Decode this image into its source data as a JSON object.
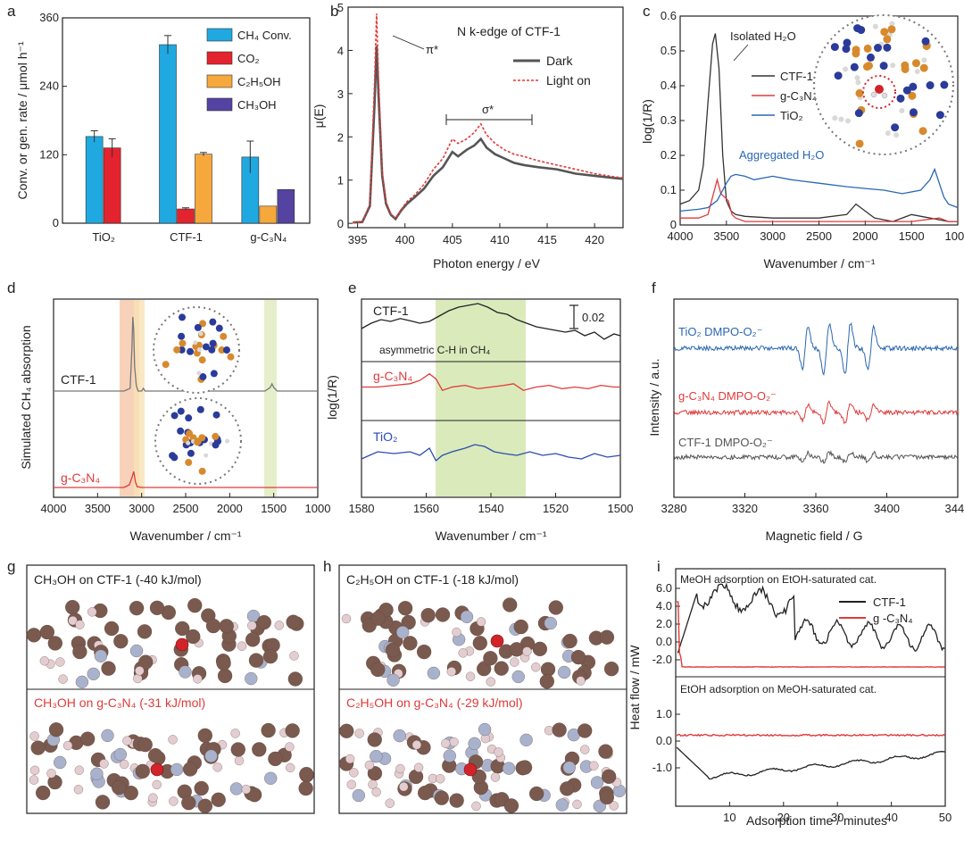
{
  "panels": {
    "a": {
      "letter": "a",
      "chart_data": {
        "type": "bar",
        "ylabel": "Conv. or gen. rate / μmol h⁻¹",
        "ylim": [
          0,
          360
        ],
        "yticks": [
          "0",
          "120",
          "240",
          "360"
        ],
        "categories": [
          "TiO₂",
          "CTF-1",
          "g-C₃N₄"
        ],
        "series": [
          {
            "name": "CH₄ Conv.",
            "color": "#1fa9e0",
            "values": [
              152,
              313,
              116
            ],
            "errors": [
              10,
              16,
              28
            ]
          },
          {
            "name": "CO₂",
            "color": "#e3232d",
            "values": [
              132,
              25,
              0
            ],
            "errors": [
              16,
              2,
              0
            ]
          },
          {
            "name": "C₂H₅OH",
            "color": "#f6a83c",
            "values": [
              0,
              121,
              30
            ],
            "errors": [
              0,
              3,
              0
            ]
          },
          {
            "name": "CH₃OH",
            "color": "#5443a0",
            "values": [
              0,
              0,
              59
            ],
            "errors": [
              0,
              0,
              0
            ]
          }
        ]
      }
    },
    "b": {
      "letter": "b",
      "title": "N k-edge of CTF-1",
      "annotations": {
        "pi": "π*",
        "sigma": "σ*"
      },
      "chart_data": {
        "type": "line",
        "xlabel": "Photon energy / eV",
        "ylabel": "μ(E)",
        "xlim": [
          394,
          423
        ],
        "ylim": [
          -0.1,
          5
        ],
        "xticks": [
          "395",
          "400",
          "405",
          "410",
          "415",
          "420"
        ],
        "yticks": [
          "0",
          "1",
          "2",
          "3",
          "4",
          "5"
        ],
        "series": [
          {
            "name": "Dark",
            "color": "#555555",
            "x": [
              394.5,
              395.5,
              396.3,
              396.8,
              397.0,
              397.2,
              397.6,
              398.0,
              398.5,
              399.0,
              399.6,
              400.2,
              401,
              402,
              403,
              404,
              405,
              405.6,
              406.5,
              407.3,
              408,
              408.6,
              409.5,
              410.5,
              411.5,
              412.5,
              414,
              416,
              418,
              420,
              422,
              423
            ],
            "y": [
              0.02,
              0.03,
              0.4,
              2.8,
              4.1,
              3.0,
              1.1,
              0.45,
              0.2,
              0.1,
              0.3,
              0.45,
              0.6,
              0.8,
              1.1,
              1.3,
              1.65,
              1.55,
              1.7,
              1.8,
              1.95,
              1.75,
              1.6,
              1.5,
              1.4,
              1.35,
              1.3,
              1.25,
              1.15,
              1.1,
              1.05,
              1.03
            ]
          },
          {
            "name": "Light on",
            "color": "#e03a3a",
            "x": [
              394.5,
              395.5,
              396.3,
              396.8,
              397.0,
              397.2,
              397.6,
              398.0,
              398.5,
              399.0,
              399.6,
              400.2,
              401,
              402,
              403,
              404,
              405,
              405.6,
              406.5,
              407.3,
              408,
              408.6,
              409.5,
              410.5,
              411.5,
              412.5,
              414,
              416,
              418,
              420,
              422,
              423
            ],
            "y": [
              0.02,
              0.03,
              0.45,
              3.3,
              4.85,
              3.4,
              1.2,
              0.5,
              0.22,
              0.12,
              0.32,
              0.5,
              0.65,
              0.9,
              1.25,
              1.5,
              1.95,
              1.85,
              1.95,
              2.1,
              2.3,
              2.05,
              1.85,
              1.7,
              1.6,
              1.55,
              1.45,
              1.35,
              1.25,
              1.15,
              1.08,
              1.05
            ]
          }
        ]
      }
    },
    "c": {
      "letter": "c",
      "annotations": {
        "isolated": "Isolated H₂O",
        "aggregated": "Aggregated H₂O"
      },
      "chart_data": {
        "type": "line",
        "xlabel": "Wavenumber / cm⁻¹",
        "ylabel": "log(1/R)",
        "xlim": [
          4000,
          1000
        ],
        "ylim": [
          0,
          0.6
        ],
        "xticks": [
          "4000",
          "3500",
          "3000",
          "2500",
          "2000",
          "1500",
          "1000"
        ],
        "yticks": [
          "0",
          "0.1",
          "0.2",
          "0.3",
          "0.4",
          "0.5",
          "0.6"
        ],
        "series": [
          {
            "name": "CTF-1",
            "color": "#333333",
            "x": [
              4000,
              3900,
              3800,
              3750,
              3700,
              3650,
              3620,
              3580,
              3540,
              3500,
              3450,
              3400,
              3300,
              3000,
              2500,
              2200,
              2100,
              2000,
              1900,
              1700,
              1500,
              1300,
              1100,
              1000
            ],
            "y": [
              0.06,
              0.07,
              0.1,
              0.17,
              0.35,
              0.52,
              0.55,
              0.45,
              0.2,
              0.07,
              0.04,
              0.03,
              0.025,
              0.02,
              0.02,
              0.03,
              0.06,
              0.04,
              0.02,
              0.01,
              0.03,
              0.02,
              0.01,
              0.01
            ]
          },
          {
            "name": "g-C₃N₄",
            "color": "#e03a3a",
            "x": [
              4000,
              3800,
              3700,
              3650,
              3600,
              3560,
              3520,
              3480,
              3440,
              3400,
              3300,
              3000,
              2500,
              2000,
              1500,
              1200,
              1100,
              1000
            ],
            "y": [
              0.02,
              0.02,
              0.03,
              0.08,
              0.13,
              0.09,
              0.08,
              0.07,
              0.03,
              0.02,
              0.01,
              0.01,
              0.01,
              0.01,
              0.01,
              0.02,
              0.01,
              0.01
            ]
          },
          {
            "name": "TiO₂",
            "color": "#2a67b1",
            "x": [
              4000,
              3800,
              3700,
              3600,
              3500,
              3450,
              3400,
              3300,
              3200,
              3000,
              2800,
              2500,
              2200,
              2000,
              1800,
              1600,
              1400,
              1300,
              1250,
              1200,
              1150,
              1100,
              1000
            ],
            "y": [
              0.04,
              0.045,
              0.05,
              0.07,
              0.12,
              0.14,
              0.145,
              0.14,
              0.13,
              0.14,
              0.13,
              0.12,
              0.11,
              0.105,
              0.1,
              0.09,
              0.1,
              0.13,
              0.16,
              0.12,
              0.08,
              0.06,
              0.05
            ]
          }
        ]
      }
    },
    "d": {
      "letter": "d",
      "chart_data": {
        "type": "line",
        "xlabel": "Wavenumber / cm⁻¹",
        "ylabel": "Simulated CH₄ absorption",
        "xlim": [
          4000,
          1000
        ],
        "xticks": [
          "4000",
          "3500",
          "3000",
          "2500",
          "2000",
          "1500",
          "1000"
        ],
        "series": [
          {
            "name": "CTF-1",
            "color": "#777777",
            "x": [
              4000,
              3200,
              3130,
              3110,
              3100,
              3090,
              3080,
              3060,
              3040,
              3000,
              2980,
              2960,
              2900,
              1600,
              1540,
              1520,
              1500,
              1460,
              1000
            ],
            "y": [
              0.02,
              0.02,
              0.05,
              0.5,
              0.85,
              0.7,
              0.3,
              0.08,
              0.02,
              0.02,
              0.05,
              0.02,
              0.02,
              0.02,
              0.06,
              0.1,
              0.06,
              0.02,
              0.02
            ]
          },
          {
            "name": "g-C₃N₄",
            "color": "#e03a3a",
            "x": [
              4000,
              3200,
              3140,
              3110,
              3090,
              3070,
              3050,
              3000,
              1000
            ],
            "y": [
              0.02,
              0.02,
              0.05,
              0.13,
              0.2,
              0.08,
              0.03,
              0.02,
              0.02
            ]
          }
        ]
      }
    },
    "e": {
      "letter": "e",
      "annotations": {
        "asym": "asymmetric C-H in CH₄",
        "scalebar": "0.02"
      },
      "chart_data": {
        "type": "line",
        "xlabel": "Wavenumber / cm⁻¹",
        "ylabel": "log(1/R)",
        "xlim": [
          1580,
          1500
        ],
        "xticks": [
          "1580",
          "1560",
          "1540",
          "1520",
          "1500"
        ],
        "series": [
          {
            "name": "CTF-1",
            "color": "#222222",
            "x": [
              1580,
              1577,
              1574,
              1571,
              1568,
              1565,
              1562,
              1559,
              1556,
              1553,
              1550,
              1547,
              1544,
              1541,
              1538,
              1535,
              1532,
              1529,
              1526,
              1523,
              1520,
              1517,
              1514,
              1511,
              1508,
              1505,
              1502,
              1500
            ],
            "y": [
              0.3,
              0.45,
              0.55,
              0.5,
              0.58,
              0.52,
              0.45,
              0.5,
              0.65,
              0.8,
              0.9,
              0.95,
              1.0,
              0.9,
              0.75,
              0.7,
              0.55,
              0.45,
              0.35,
              0.3,
              0.25,
              0.2,
              0.25,
              0.1,
              0.2,
              0.0,
              0.15,
              0.1
            ]
          },
          {
            "name": "g-C₃N₄",
            "color": "#e03a3a",
            "x": [
              1580,
              1575,
              1570,
              1565,
              1562,
              1559,
              1557,
              1555,
              1552,
              1548,
              1544,
              1540,
              1536,
              1533,
              1530,
              1526,
              1522,
              1518,
              1514,
              1510,
              1506,
              1502,
              1500
            ],
            "y": [
              0.5,
              0.5,
              0.55,
              0.6,
              0.7,
              0.9,
              0.75,
              0.4,
              0.5,
              0.55,
              0.45,
              0.5,
              0.55,
              0.6,
              0.4,
              0.5,
              0.55,
              0.45,
              0.5,
              0.45,
              0.55,
              0.5,
              0.5
            ]
          },
          {
            "name": "TiO₂",
            "color": "#2a4db1",
            "x": [
              1580,
              1575,
              1570,
              1565,
              1562,
              1559,
              1557,
              1555,
              1552,
              1548,
              1545,
              1542,
              1539,
              1536,
              1532,
              1528,
              1524,
              1520,
              1516,
              1512,
              1508,
              1504,
              1500
            ],
            "y": [
              0.4,
              0.6,
              0.55,
              0.6,
              0.5,
              0.7,
              0.35,
              0.5,
              0.6,
              0.7,
              0.8,
              0.75,
              0.6,
              0.55,
              0.5,
              0.6,
              0.5,
              0.55,
              0.45,
              0.4,
              0.55,
              0.45,
              0.5
            ]
          }
        ]
      }
    },
    "f": {
      "letter": "f",
      "chart_data": {
        "type": "line",
        "xlabel": "Magnetic field / G",
        "ylabel": "Intensity / a.u.",
        "xlim": [
          3280,
          3440
        ],
        "xticks": [
          "3280",
          "3320",
          "3360",
          "3400",
          "3440"
        ],
        "series": [
          {
            "name": "TiO₂ DMPO-O₂⁻",
            "color": "#2a67b1",
            "amp": 1.0
          },
          {
            "name": "g-C₃N₄ DMPO-O₂⁻",
            "color": "#e03a3a",
            "amp": 0.4
          },
          {
            "name": "CTF-1 DMPO-O₂⁻",
            "color": "#555555",
            "amp": 0.2
          }
        ]
      }
    },
    "g": {
      "letter": "g",
      "top_label": "CH₃OH on CTF-1 (-40 kJ/mol)",
      "bottom_label": "CH₃OH on g-C₃N₄ (-31 kJ/mol)"
    },
    "h": {
      "letter": "h",
      "top_label": "C₂H₅OH on CTF-1 (-18 kJ/mol)",
      "bottom_label": "C₂H₅OH on g-C₃N₄ (-29 kJ/mol)"
    },
    "i": {
      "letter": "i",
      "top_title": "MeOH adsorption on EtOH-saturated cat.",
      "bottom_title": "EtOH adsorption on MeOH-saturated cat.",
      "chart_data": {
        "type": "line",
        "xlabel": "Adsorption time / minutes",
        "ylabel": "Heat flow / mW",
        "xlim": [
          0,
          50
        ],
        "xticks": [
          "10",
          "20",
          "30",
          "40",
          "50"
        ],
        "top_yticks": [
          "6.0",
          "4.0",
          "2.0",
          "0.0",
          "-2.0"
        ],
        "bottom_yticks": [
          "1.0",
          "0.0",
          "-1.0"
        ],
        "series": [
          {
            "name": "CTF-1",
            "color": "#222222"
          },
          {
            "name": "g -C₃N₄",
            "color": "#e03a3a"
          }
        ]
      }
    }
  }
}
